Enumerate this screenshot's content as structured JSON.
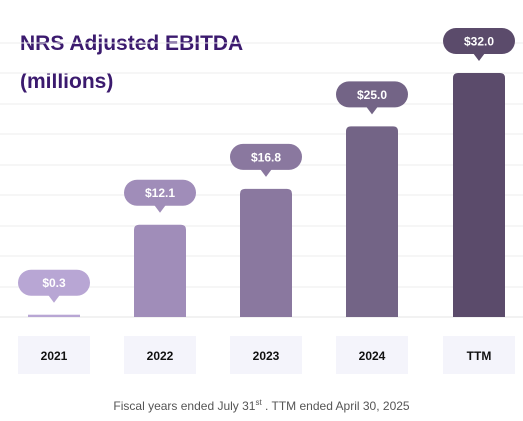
{
  "chart_data": {
    "type": "bar",
    "title_line1": "NRS Adjusted EBITDA",
    "title_line2": "(millions)",
    "categories": [
      "2021",
      "2022",
      "2023",
      "2024",
      "TTM"
    ],
    "values": [
      0.3,
      12.1,
      16.8,
      25.0,
      32.0
    ],
    "value_labels": [
      "$0.3",
      "$12.1",
      "$16.8",
      "$25.0",
      "$32.0"
    ],
    "ylim": [
      0,
      32.0
    ],
    "grid": true,
    "bar_colors": [
      "#b8a6d4",
      "#a08db9",
      "#8a789f",
      "#736486",
      "#5b4b6b"
    ],
    "label_colors": [
      "#b8a6d4",
      "#a08db9",
      "#8a789f",
      "#736486",
      "#5b4b6b"
    ]
  },
  "footnote": {
    "part1": "Fiscal years  ended July 31",
    "sup": "st",
    "part2": " .  TTM ended April 30, 2025"
  }
}
